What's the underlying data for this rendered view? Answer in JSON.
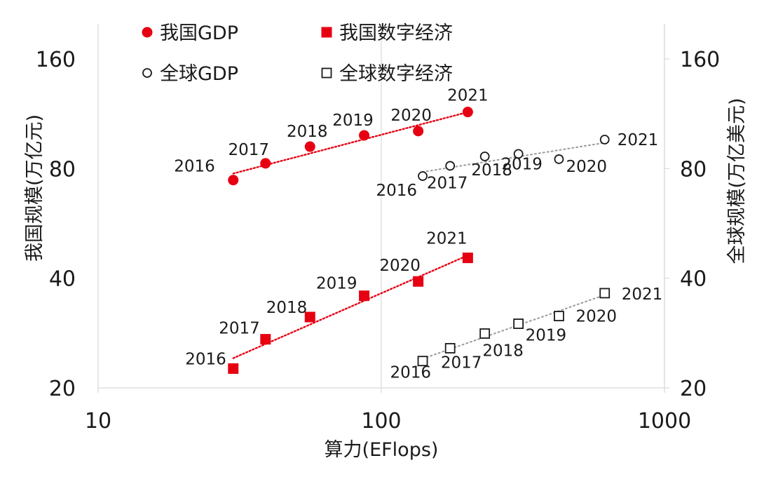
{
  "chart_data": {
    "type": "scatter",
    "x_scale": "log",
    "xlabel": "算力(EFlops)",
    "ylabel_left": "我国规模(万亿元)",
    "ylabel_right": "全球规模(万亿美元)",
    "x_ticks": [
      10,
      100,
      1000
    ],
    "x_tick_labels": [
      "10",
      "100",
      "1000"
    ],
    "y_scale": "log",
    "y_ticks": [
      20,
      40,
      80,
      160
    ],
    "y_tick_labels": [
      "20",
      "40",
      "80",
      "160"
    ],
    "xlim": [
      10,
      1000
    ],
    "ylim": [
      20,
      200
    ],
    "legend_position": "top-left",
    "series": [
      {
        "name": "我国GDP",
        "marker": "filled-circle",
        "color": "#e60012",
        "trendline": "dotted",
        "points": [
          {
            "year": "2016",
            "x": 30,
            "y": 74.4
          },
          {
            "year": "2017",
            "x": 39,
            "y": 82.7
          },
          {
            "year": "2018",
            "x": 56,
            "y": 91.9
          },
          {
            "year": "2019",
            "x": 87,
            "y": 98.7
          },
          {
            "year": "2020",
            "x": 135,
            "y": 101.4
          },
          {
            "year": "2021",
            "x": 202,
            "y": 114.4
          }
        ]
      },
      {
        "name": "我国数字经济",
        "marker": "filled-square",
        "color": "#e60012",
        "trendline": "dotted",
        "points": [
          {
            "year": "2016",
            "x": 30,
            "y": 22.6
          },
          {
            "year": "2017",
            "x": 39,
            "y": 27.2
          },
          {
            "year": "2018",
            "x": 56,
            "y": 31.3
          },
          {
            "year": "2019",
            "x": 87,
            "y": 35.8
          },
          {
            "year": "2020",
            "x": 135,
            "y": 39.2
          },
          {
            "year": "2021",
            "x": 202,
            "y": 45.5
          }
        ]
      },
      {
        "name": "全球GDP",
        "marker": "open-circle",
        "color": "#1a1a1a",
        "trendline": "dotted",
        "points": [
          {
            "year": "2016",
            "x": 140,
            "y": 76.3
          },
          {
            "year": "2017",
            "x": 175,
            "y": 81.4
          },
          {
            "year": "2018",
            "x": 232,
            "y": 86.4
          },
          {
            "year": "2019",
            "x": 305,
            "y": 87.8
          },
          {
            "year": "2020",
            "x": 424,
            "y": 84.9
          },
          {
            "year": "2021",
            "x": 615,
            "y": 96.1
          }
        ]
      },
      {
        "name": "全球数字经济",
        "marker": "open-square",
        "color": "#1a1a1a",
        "trendline": "dotted",
        "points": [
          {
            "year": "2016",
            "x": 140,
            "y": 23.7
          },
          {
            "year": "2017",
            "x": 175,
            "y": 25.7
          },
          {
            "year": "2018",
            "x": 232,
            "y": 28.2
          },
          {
            "year": "2019",
            "x": 305,
            "y": 30.0
          },
          {
            "year": "2020",
            "x": 424,
            "y": 31.5
          },
          {
            "year": "2021",
            "x": 615,
            "y": 36.4
          }
        ]
      }
    ]
  }
}
